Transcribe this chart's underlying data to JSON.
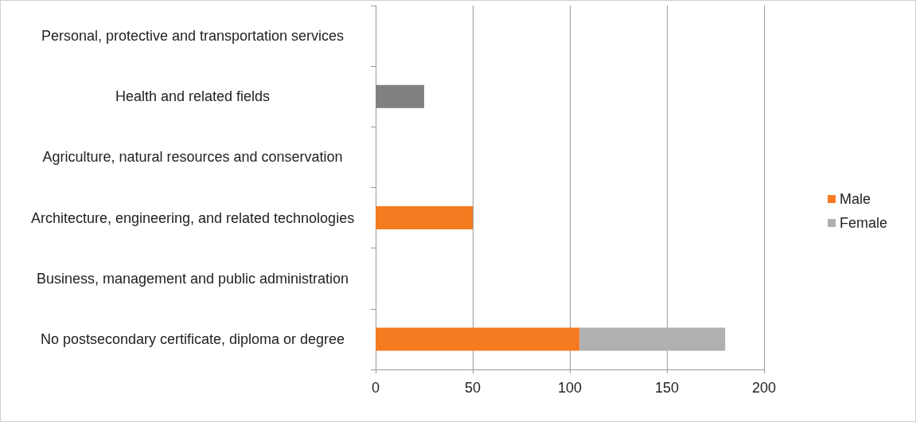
{
  "chart_data": {
    "type": "bar",
    "orientation": "horizontal",
    "stacked": true,
    "categories": [
      "Personal, protective and transportation services",
      "Health and related fields",
      "Agriculture, natural resources and conservation",
      "Architecture, engineering, and related technologies",
      "Business, management and public administration",
      "No postsecondary certificate, diploma or degree"
    ],
    "series": [
      {
        "name": "Male",
        "color": "#f47b20",
        "values": [
          null,
          null,
          null,
          50,
          null,
          105
        ]
      },
      {
        "name": "Female",
        "color": "#b0b0b0",
        "colors": [
          "#b0b0b0",
          "#808080",
          "#b0b0b0",
          "#b0b0b0",
          "#b0b0b0",
          "#b0b0b0"
        ],
        "values": [
          null,
          25,
          null,
          null,
          null,
          75
        ]
      }
    ],
    "xlim": [
      0,
      200
    ],
    "xticks": [
      0,
      50,
      100,
      150,
      200
    ],
    "grid": "x",
    "legend": "right"
  }
}
